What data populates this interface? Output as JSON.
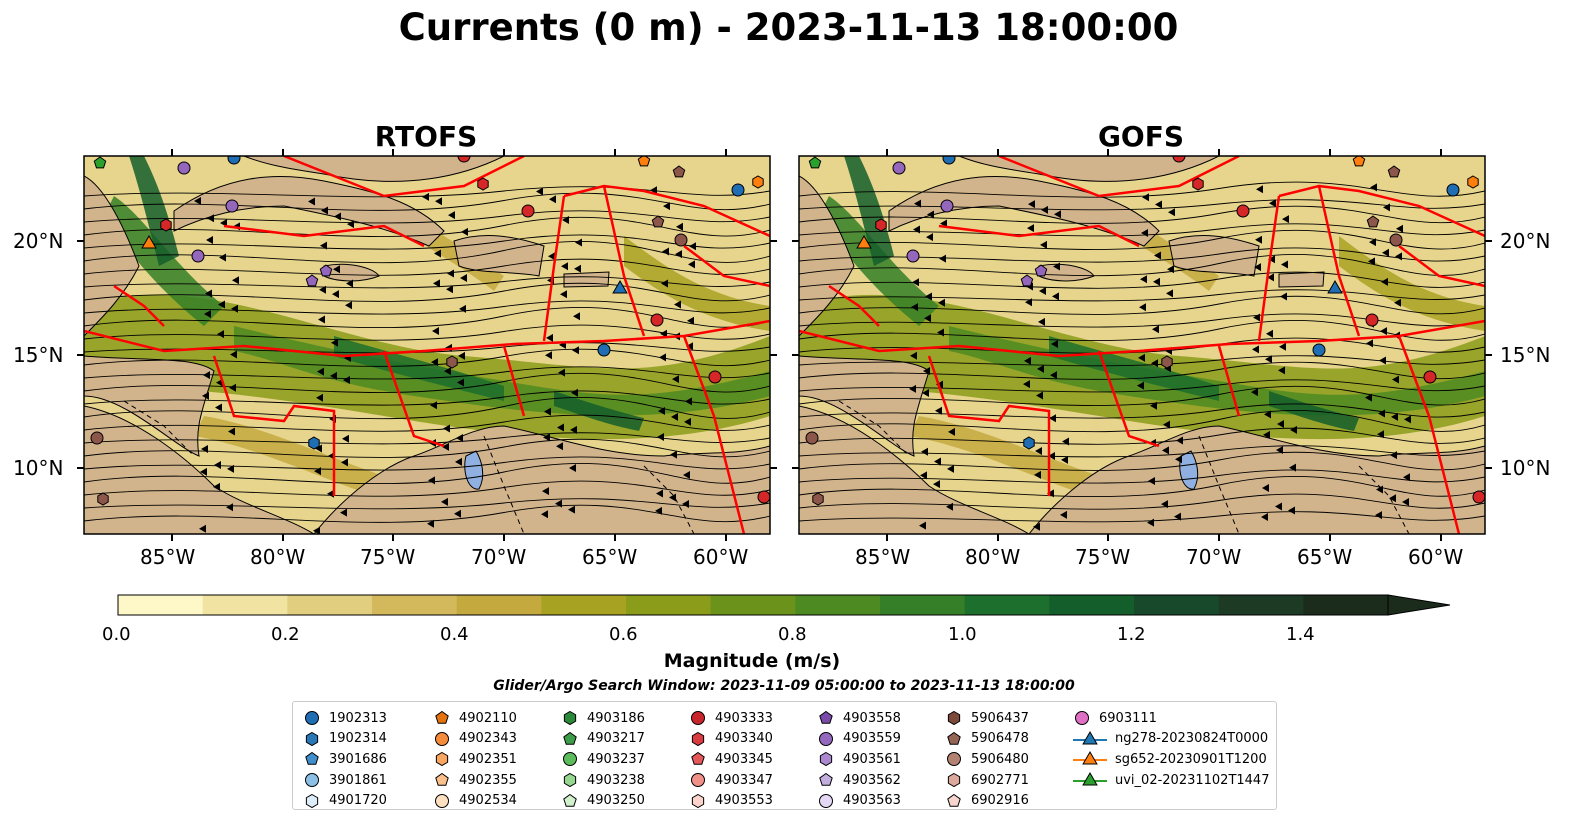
{
  "title": "Currents (0 m) - 2023-11-13 18:00:00",
  "panels": [
    {
      "title": "RTOFS",
      "model": "rtofs"
    },
    {
      "title": "GOFS",
      "model": "gofs"
    }
  ],
  "map_extent": {
    "lon_min": -89.5,
    "lon_max": -58.0,
    "lat_min": 7.0,
    "lat_max": 24.0
  },
  "x_ticks": [
    "85°W",
    "80°W",
    "75°W",
    "70°W",
    "65°W",
    "60°W"
  ],
  "y_ticks": [
    "20°N",
    "15°N",
    "10°N"
  ],
  "colorbar": {
    "label": "Magnitude (m/s)",
    "ticks": [
      "0.0",
      "0.2",
      "0.4",
      "0.6",
      "0.8",
      "1.0",
      "1.2",
      "1.4"
    ],
    "range": [
      0.0,
      1.5
    ],
    "extend": "max",
    "colors": [
      "#fef8c8",
      "#f1e4a2",
      "#e1ce7e",
      "#d3b95c",
      "#c4a93e",
      "#a8a222",
      "#8a9c19",
      "#6b931c",
      "#4d8a22",
      "#347f27",
      "#1c6f2c",
      "#145e2c",
      "#18492a",
      "#1c3a24",
      "#1b2c1c"
    ]
  },
  "search_window": "Glider/Argo Search Window: 2023-11-09 05:00:00 to 2023-11-13 18:00:00",
  "land_color": "#d2b48c",
  "eez_color": "#ff0000",
  "legend": [
    [
      {
        "label": "1902313",
        "marker": "circle",
        "color": "#1f6eb4"
      },
      {
        "label": "1902314",
        "marker": "hexagon",
        "color": "#2878b8"
      },
      {
        "label": "3901686",
        "marker": "pentagon",
        "color": "#3f8fcd"
      },
      {
        "label": "3901861",
        "marker": "circle",
        "color": "#8cc0e6"
      },
      {
        "label": "4901720",
        "marker": "hexagon",
        "color": "#dcecf8"
      }
    ],
    [
      {
        "label": "4902110",
        "marker": "pentagon",
        "color": "#e4730f"
      },
      {
        "label": "4902343",
        "marker": "circle",
        "color": "#f58c3c"
      },
      {
        "label": "4902351",
        "marker": "hexagon",
        "color": "#f8a660"
      },
      {
        "label": "4902355",
        "marker": "pentagon",
        "color": "#fbc08c"
      },
      {
        "label": "4902534",
        "marker": "circle",
        "color": "#fde0c0"
      }
    ],
    [
      {
        "label": "4903186",
        "marker": "hexagon",
        "color": "#2a8a3a"
      },
      {
        "label": "4903217",
        "marker": "pentagon",
        "color": "#3c9e48"
      },
      {
        "label": "4903237",
        "marker": "circle",
        "color": "#5cbc5c"
      },
      {
        "label": "4903238",
        "marker": "hexagon",
        "color": "#96d690"
      },
      {
        "label": "4903250",
        "marker": "pentagon",
        "color": "#d2f0cc"
      }
    ],
    [
      {
        "label": "4903333",
        "marker": "circle",
        "color": "#c8252c"
      },
      {
        "label": "4903340",
        "marker": "hexagon",
        "color": "#d83c40"
      },
      {
        "label": "4903345",
        "marker": "pentagon",
        "color": "#e4585a"
      },
      {
        "label": "4903347",
        "marker": "circle",
        "color": "#f09088"
      },
      {
        "label": "4903553",
        "marker": "hexagon",
        "color": "#fcd4cc"
      }
    ],
    [
      {
        "label": "4903558",
        "marker": "pentagon",
        "color": "#7a4aa8"
      },
      {
        "label": "4903559",
        "marker": "circle",
        "color": "#9468bc"
      },
      {
        "label": "4903561",
        "marker": "hexagon",
        "color": "#ac88d0"
      },
      {
        "label": "4903562",
        "marker": "pentagon",
        "color": "#c4aee0"
      },
      {
        "label": "4903563",
        "marker": "circle",
        "color": "#e4d8f4"
      }
    ],
    [
      {
        "label": "5906437",
        "marker": "hexagon",
        "color": "#7c4a3c"
      },
      {
        "label": "5906478",
        "marker": "pentagon",
        "color": "#966454"
      },
      {
        "label": "5906480",
        "marker": "circle",
        "color": "#b48272"
      },
      {
        "label": "6902771",
        "marker": "hexagon",
        "color": "#dcaa9c"
      },
      {
        "label": "6902916",
        "marker": "pentagon",
        "color": "#f8d4ce"
      }
    ],
    [
      {
        "label": "6903111",
        "marker": "circle",
        "color": "#e070c4"
      },
      {
        "label": "ng278-20230824T0000",
        "marker": "triangle",
        "color": "#1f77b4",
        "line": true
      },
      {
        "label": "sg652-20230901T1200",
        "marker": "triangle",
        "color": "#ff7f0e",
        "line": true
      },
      {
        "label": "uvi_02-20231102T1447",
        "marker": "triangle",
        "color": "#2ca02c",
        "line": true
      }
    ]
  ]
}
